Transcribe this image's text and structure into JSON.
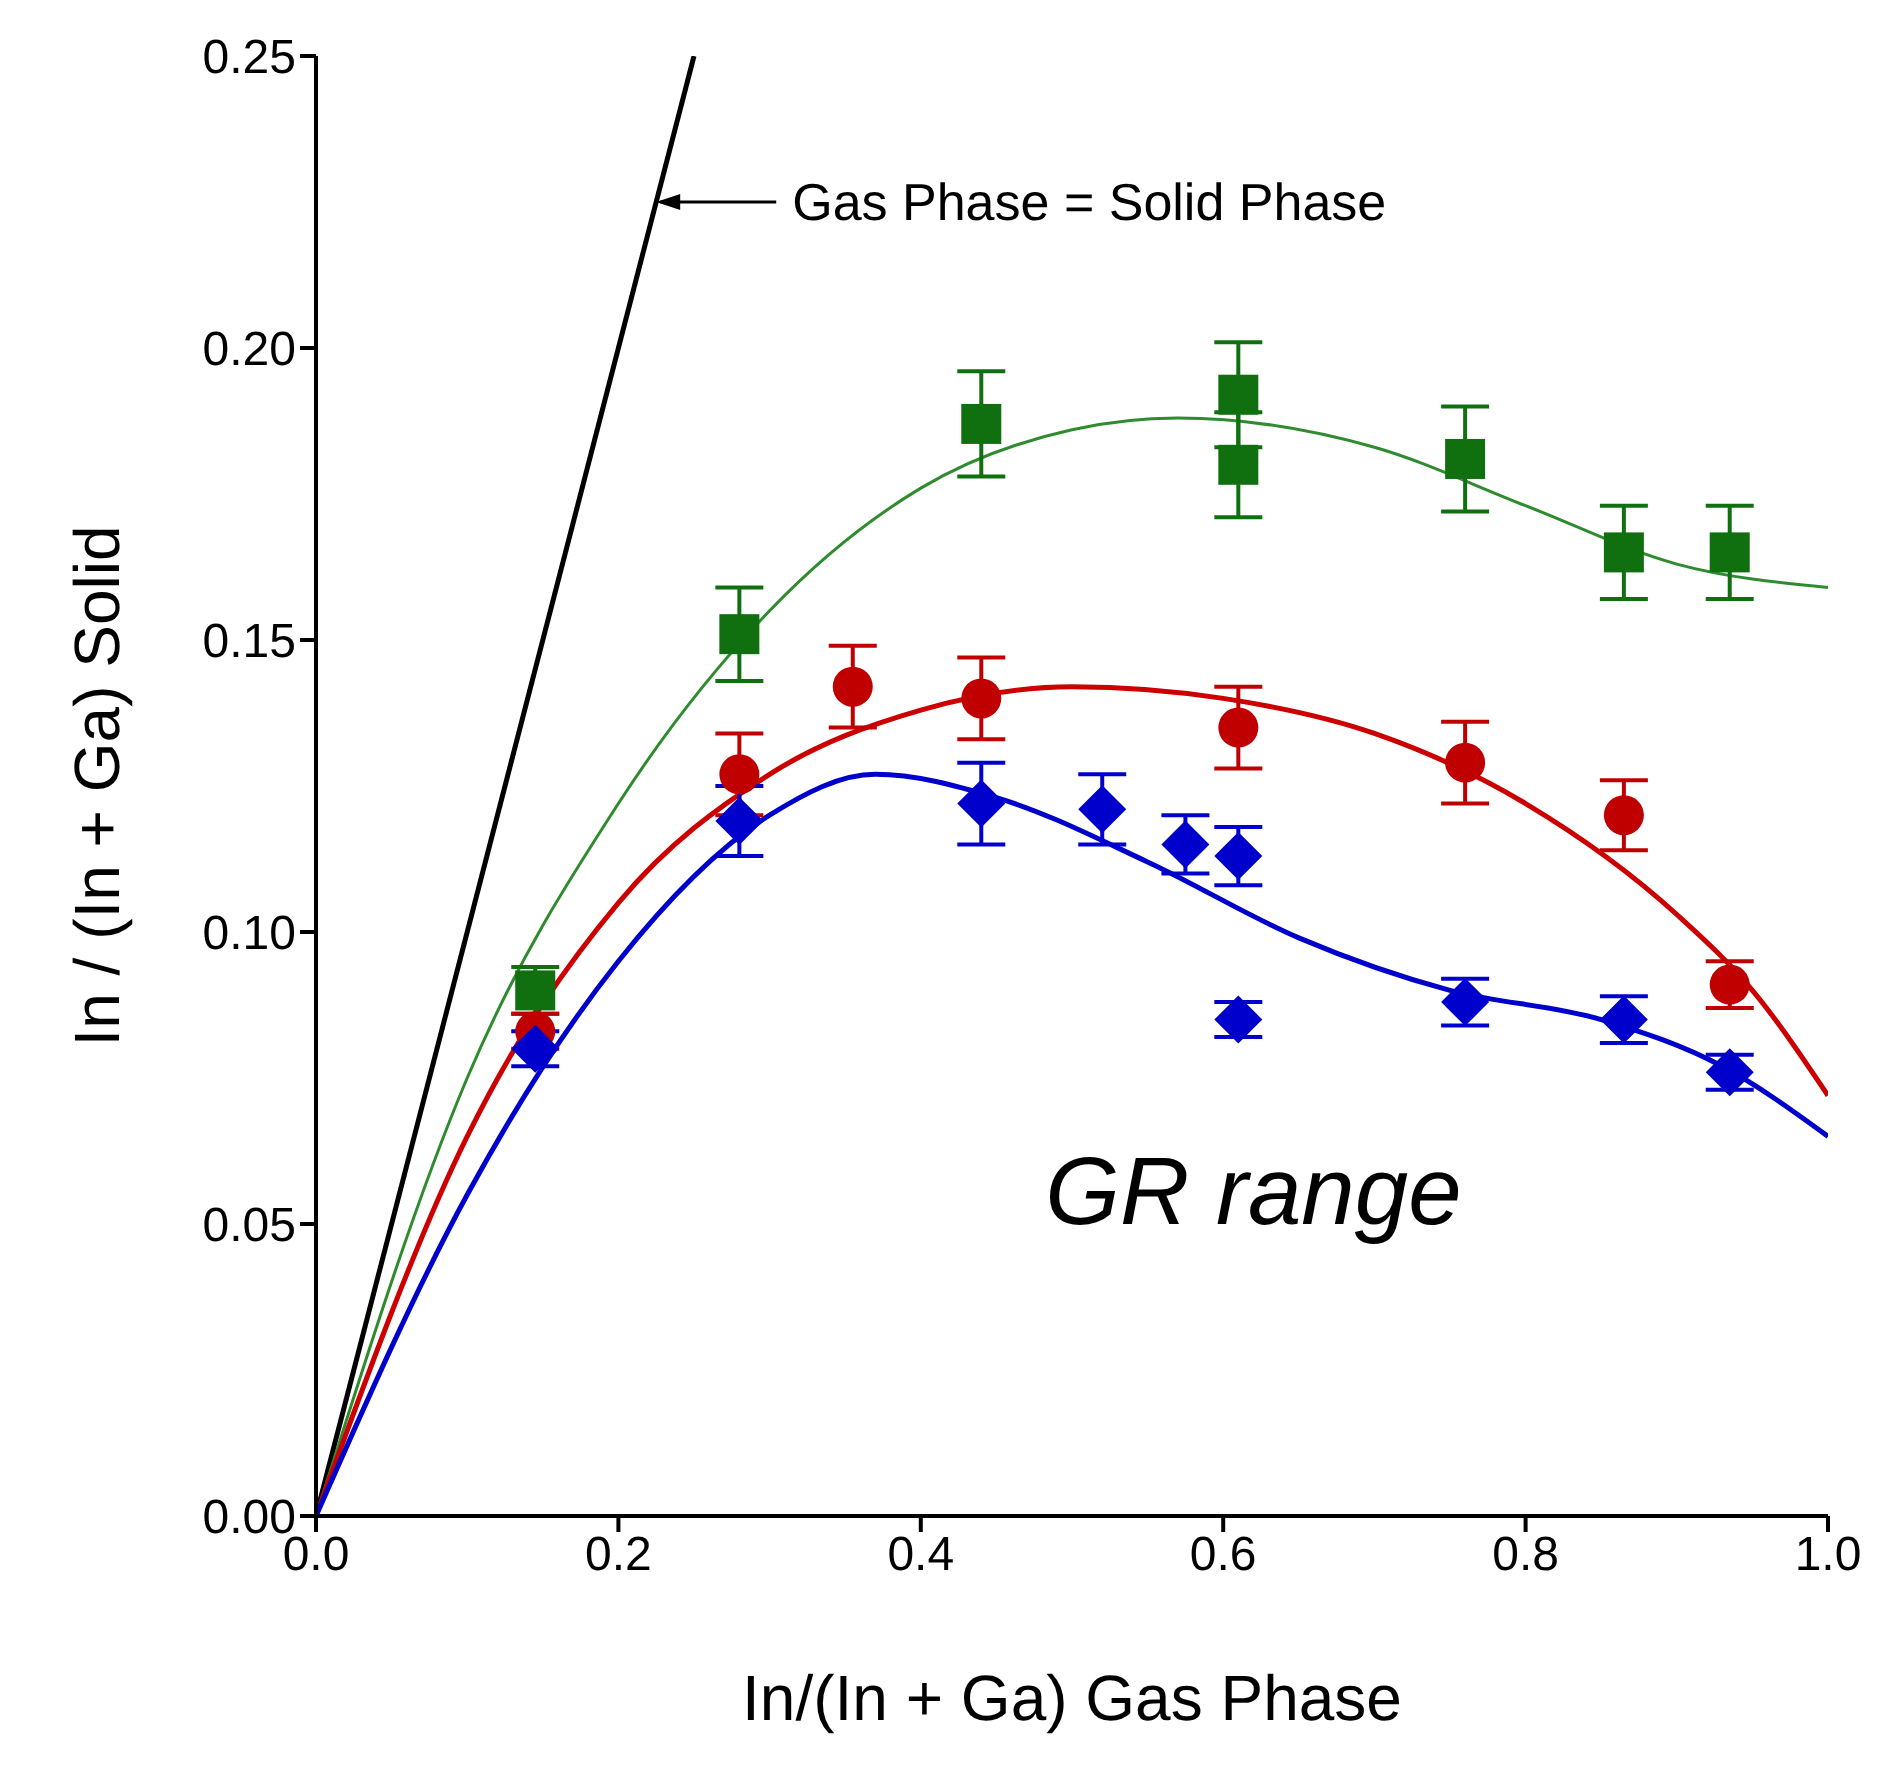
{
  "chart_data": {
    "type": "scatter",
    "xlabel": "In/(In + Ga) Gas Phase",
    "ylabel": "In / (In + Ga) Solid",
    "xlim": [
      0,
      1
    ],
    "ylim": [
      0,
      0.25
    ],
    "xticks": [
      {
        "value": 0,
        "label": "0.0"
      },
      {
        "value": 0.2,
        "label": "0.2"
      },
      {
        "value": 0.4,
        "label": "0.4"
      },
      {
        "value": 0.6,
        "label": "0.6"
      },
      {
        "value": 0.8,
        "label": "0.8"
      },
      {
        "value": 1,
        "label": "1.0"
      }
    ],
    "yticks": [
      {
        "value": 0,
        "label": "0.00"
      },
      {
        "value": 0.05,
        "label": "0.05"
      },
      {
        "value": 0.1,
        "label": "0.10"
      },
      {
        "value": 0.15,
        "label": "0.15"
      },
      {
        "value": 0.2,
        "label": "0.20"
      },
      {
        "value": 0.25,
        "label": "0.25"
      }
    ],
    "annotations": [
      {
        "text": "Gas Phase = Solid Phase",
        "x": 0.225,
        "y": 0.225
      },
      "GR range"
    ],
    "series": [
      {
        "type": "line",
        "color": "#000000",
        "marker": "none",
        "x": [
          0,
          0.25
        ],
        "values": [
          0,
          0.25
        ]
      },
      {
        "type": "line",
        "color": "#2e8b2e",
        "marker": "none",
        "x": [
          0,
          0.1,
          0.2,
          0.3,
          0.4,
          0.5,
          0.57,
          0.7,
          0.8,
          0.9,
          1.0
        ],
        "values": [
          0,
          0.075,
          0.122,
          0.155,
          0.176,
          0.186,
          0.188,
          0.183,
          0.173,
          0.163,
          0.159
        ]
      },
      {
        "type": "line",
        "color": "#cc0000",
        "marker": "none",
        "x": [
          0,
          0.1,
          0.2,
          0.3,
          0.4,
          0.5,
          0.6,
          0.7,
          0.8,
          0.9,
          0.95,
          1.0
        ],
        "values": [
          0,
          0.065,
          0.105,
          0.127,
          0.138,
          0.142,
          0.14,
          0.134,
          0.122,
          0.103,
          0.09,
          0.072
        ]
      },
      {
        "type": "line",
        "color": "#0000cc",
        "marker": "none",
        "x": [
          0,
          0.1,
          0.2,
          0.3,
          0.37,
          0.45,
          0.55,
          0.65,
          0.75,
          0.85,
          0.93,
          1.0
        ],
        "values": [
          0,
          0.055,
          0.095,
          0.12,
          0.127,
          0.123,
          0.112,
          0.099,
          0.09,
          0.085,
          0.077,
          0.065
        ]
      },
      {
        "color": "#107010",
        "marker": "square",
        "x": [
          0.145,
          0.28,
          0.44,
          0.61,
          0.61,
          0.76,
          0.865,
          0.935
        ],
        "values": [
          0.09,
          0.151,
          0.187,
          0.192,
          0.18,
          0.181,
          0.165,
          0.165
        ],
        "errors": [
          0.004,
          0.008,
          0.009,
          0.009,
          0.009,
          0.009,
          0.008,
          0.008
        ]
      },
      {
        "color": "#c00000",
        "marker": "circle",
        "x": [
          0.145,
          0.28,
          0.355,
          0.44,
          0.61,
          0.76,
          0.865,
          0.935
        ],
        "values": [
          0.083,
          0.127,
          0.142,
          0.14,
          0.135,
          0.129,
          0.12,
          0.091
        ],
        "errors": [
          0.003,
          0.007,
          0.007,
          0.007,
          0.007,
          0.007,
          0.006,
          0.004
        ]
      },
      {
        "color": "#0000cc",
        "marker": "diamond",
        "x": [
          0.145,
          0.28,
          0.44,
          0.52,
          0.575,
          0.61,
          0.61,
          0.76,
          0.865,
          0.935
        ],
        "values": [
          0.08,
          0.119,
          0.122,
          0.121,
          0.115,
          0.113,
          0.085,
          0.088,
          0.085,
          0.076
        ],
        "errors": [
          0.003,
          0.006,
          0.007,
          0.006,
          0.005,
          0.005,
          0.003,
          0.004,
          0.004,
          0.003
        ]
      }
    ]
  }
}
